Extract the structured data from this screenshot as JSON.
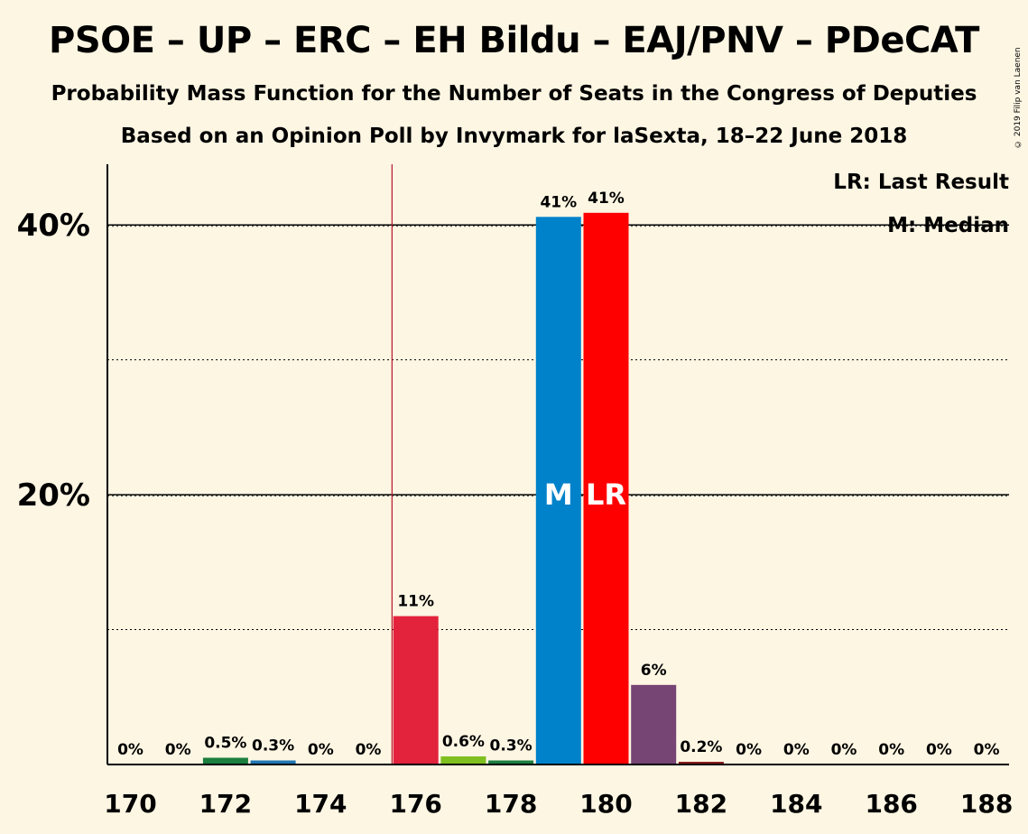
{
  "header": {
    "title": "PSOE – UP – ERC – EH Bildu – EAJ/PNV – PDeCAT",
    "subtitle1": "Probability Mass Function for the Number of Seats in the Congress of Deputies",
    "subtitle2": "Based on an Opinion Poll by Invymark for laSexta, 18–22 June 2018",
    "copyright": "© 2019 Filip van Laenen"
  },
  "legend": {
    "last_result": "LR: Last Result",
    "median": "M: Median"
  },
  "chart_data": {
    "type": "bar",
    "x": [
      170,
      171,
      172,
      173,
      174,
      175,
      176,
      177,
      178,
      179,
      180,
      181,
      182,
      183,
      184,
      185,
      186,
      187,
      188
    ],
    "values": [
      0,
      0,
      0.5,
      0.3,
      0,
      0,
      11,
      0.6,
      0.3,
      40.6,
      40.9,
      5.9,
      0.2,
      0,
      0,
      0,
      0,
      0,
      0
    ],
    "labels": [
      "0%",
      "0%",
      "0.5%",
      "0.3%",
      "0%",
      "0%",
      "11%",
      "0.6%",
      "0.3%",
      "41%",
      "41%",
      "6%",
      "0.2%",
      "0%",
      "0%",
      "0%",
      "0%",
      "0%",
      "0%"
    ],
    "colors": [
      "#e3223c",
      "#e3223c",
      "#1b7f3e",
      "#1f77b4",
      "#e3223c",
      "#e3223c",
      "#e3223c",
      "#7fbf1f",
      "#1b7f3e",
      "#0082ca",
      "#ff0000",
      "#764574",
      "#8b1a1a",
      "#e3223c",
      "#e3223c",
      "#e3223c",
      "#e3223c",
      "#e3223c",
      "#e3223c"
    ],
    "x_tick_labels": [
      "170",
      "172",
      "174",
      "176",
      "178",
      "180",
      "182",
      "184",
      "186",
      "188"
    ],
    "y_tick_labels": [
      "20%",
      "40%"
    ],
    "ylim": [
      0,
      44.5
    ],
    "median_seat": 179,
    "median_marker": "M",
    "last_result_seat": 180,
    "last_result_marker": "LR",
    "majority_line_seat": 175.5,
    "grid": "solid at 20% steps, dotted at 10% steps",
    "legend_position": "top-right",
    "xlabel": "",
    "ylabel": ""
  }
}
